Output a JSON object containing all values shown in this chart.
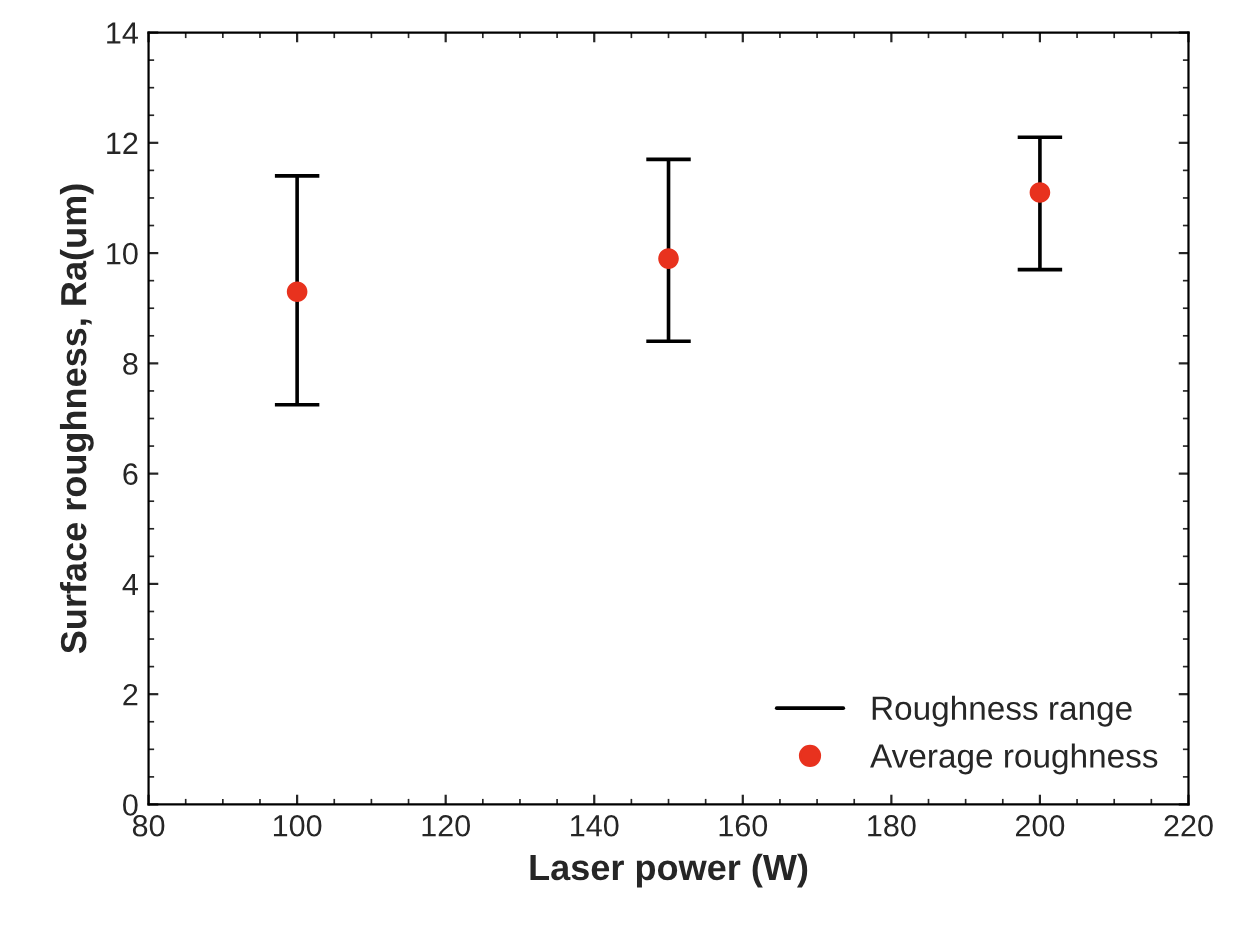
{
  "chart_data": {
    "type": "scatter",
    "xlabel": "Laser power (W)",
    "ylabel": "Surface roughness, Ra(um)",
    "x": [
      100,
      150,
      200
    ],
    "series": [
      {
        "name": "Average roughness",
        "color": "#e8321e",
        "values": [
          9.3,
          9.9,
          11.1
        ],
        "errors": [
          [
            7.25,
            11.4
          ],
          [
            8.4,
            11.7
          ],
          [
            9.7,
            12.1
          ]
        ]
      }
    ],
    "annotations": [
      "Roughness range"
    ],
    "marker": "circle",
    "xlim": [
      80,
      220
    ],
    "xticks": [
      80,
      100,
      120,
      140,
      160,
      180,
      200,
      220
    ],
    "ylim": [
      0,
      14
    ],
    "yticks": [
      0,
      2,
      4,
      6,
      8,
      10,
      12,
      14
    ],
    "legend": "bottom right"
  }
}
